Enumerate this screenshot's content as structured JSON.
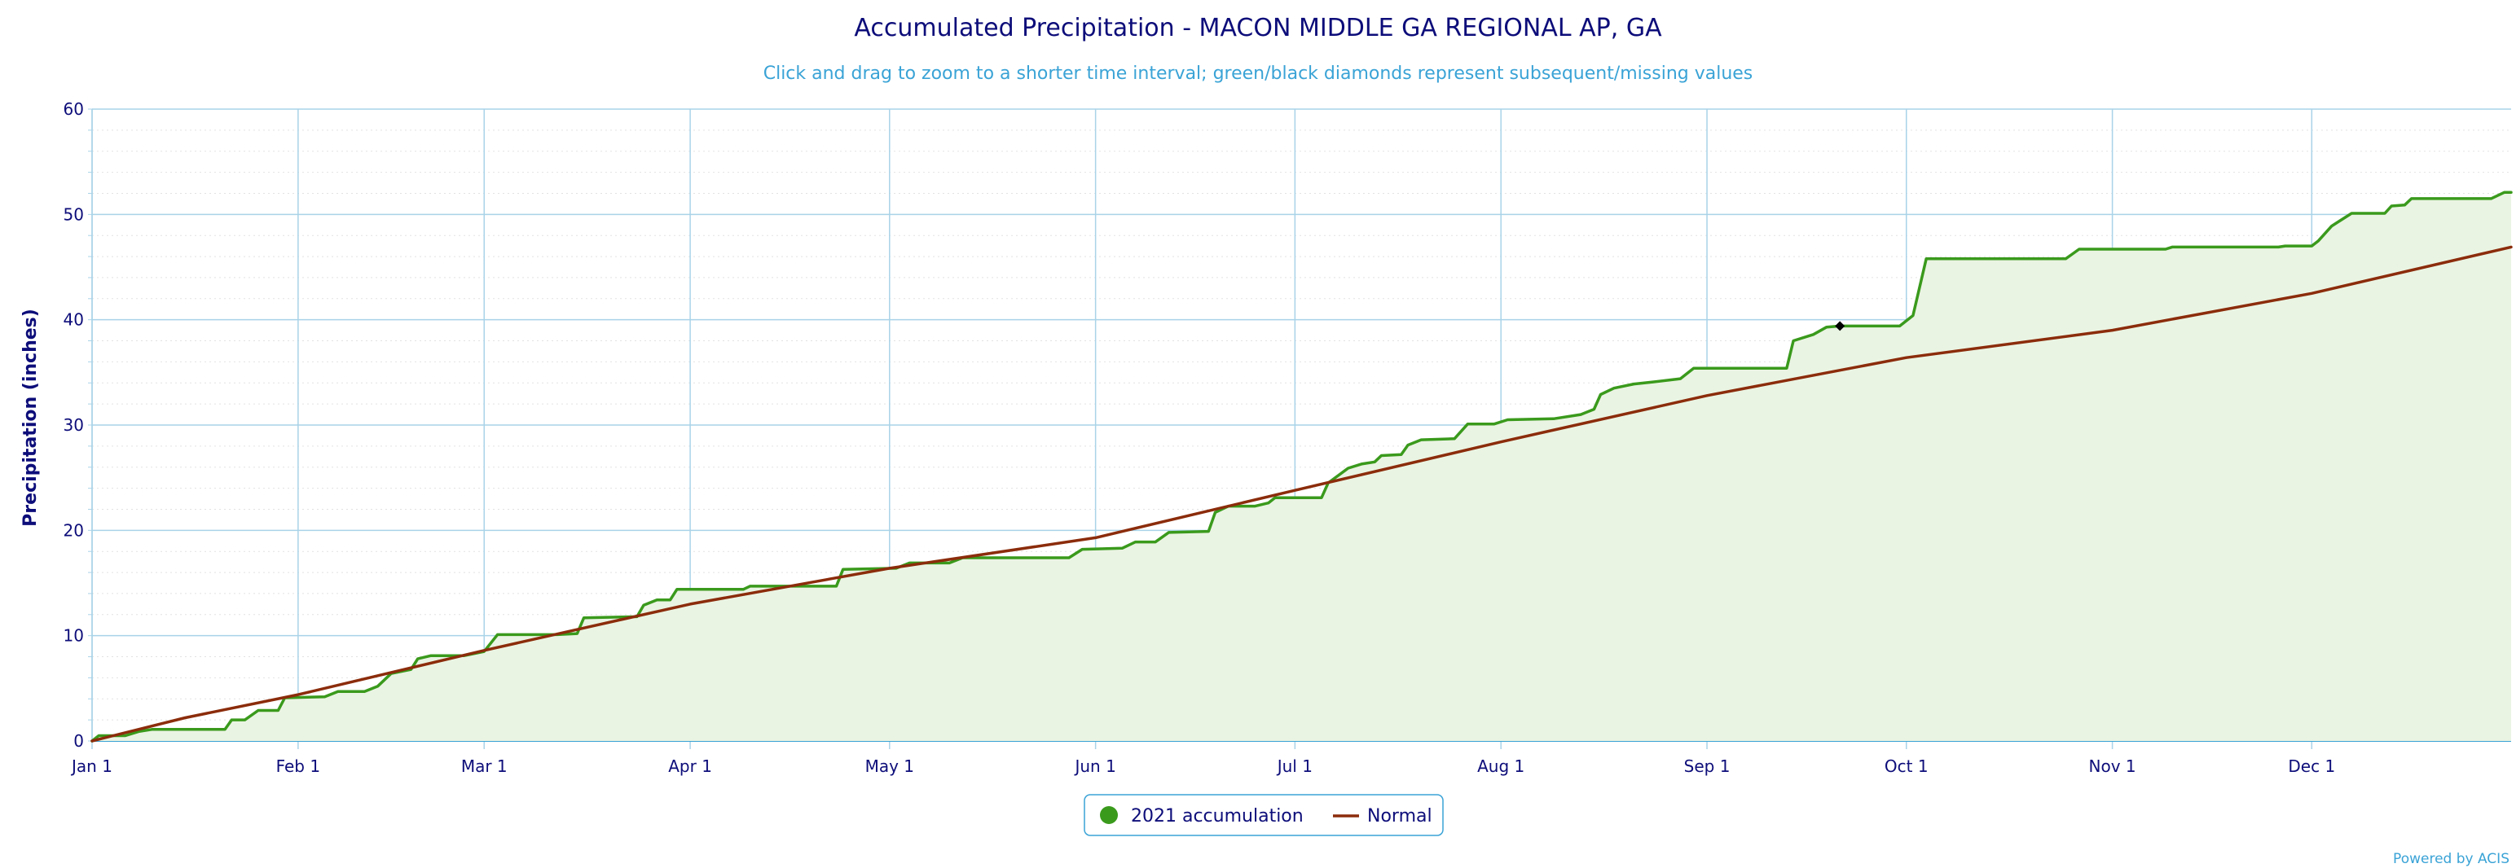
{
  "chart_data": {
    "type": "line",
    "title": "Accumulated Precipitation - MACON MIDDLE GA REGIONAL AP, GA",
    "subtitle": "Click and drag to zoom to a shorter time interval; green/black diamonds represent subsequent/missing values",
    "ylabel": "Precipitation (inches)",
    "ylim": [
      0,
      60
    ],
    "yticks": [
      0,
      10,
      20,
      30,
      40,
      50,
      60
    ],
    "xlim": [
      "2021-01-01",
      "2021-12-31"
    ],
    "xticks": [
      {
        "label": "Jan 1",
        "date": "2021-01-01"
      },
      {
        "label": "Feb 1",
        "date": "2021-02-01"
      },
      {
        "label": "Mar 1",
        "date": "2021-03-01"
      },
      {
        "label": "Apr 1",
        "date": "2021-04-01"
      },
      {
        "label": "May 1",
        "date": "2021-05-01"
      },
      {
        "label": "Jun 1",
        "date": "2021-06-01"
      },
      {
        "label": "Jul 1",
        "date": "2021-07-01"
      },
      {
        "label": "Aug 1",
        "date": "2021-08-01"
      },
      {
        "label": "Sep 1",
        "date": "2021-09-01"
      },
      {
        "label": "Oct 1",
        "date": "2021-10-01"
      },
      {
        "label": "Nov 1",
        "date": "2021-11-01"
      },
      {
        "label": "Dec 1",
        "date": "2021-12-01"
      }
    ],
    "grid": true,
    "legend_position": "bottom-center",
    "series": [
      {
        "name": "2021 accumulation",
        "color": "#3a9a1c",
        "fill": "#eaf4e3",
        "points": [
          [
            "2021-01-01",
            0.0
          ],
          [
            "2021-01-02",
            0.5
          ],
          [
            "2021-01-06",
            0.5
          ],
          [
            "2021-01-08",
            0.9
          ],
          [
            "2021-01-10",
            1.1
          ],
          [
            "2021-01-21",
            1.1
          ],
          [
            "2021-01-22",
            2.0
          ],
          [
            "2021-01-24",
            2.0
          ],
          [
            "2021-01-26",
            2.9
          ],
          [
            "2021-01-29",
            2.9
          ],
          [
            "2021-01-30",
            4.1
          ],
          [
            "2021-02-05",
            4.2
          ],
          [
            "2021-02-07",
            4.7
          ],
          [
            "2021-02-11",
            4.7
          ],
          [
            "2021-02-13",
            5.2
          ],
          [
            "2021-02-15",
            6.4
          ],
          [
            "2021-02-18",
            6.8
          ],
          [
            "2021-02-19",
            7.8
          ],
          [
            "2021-02-21",
            8.1
          ],
          [
            "2021-02-26",
            8.1
          ],
          [
            "2021-03-01",
            8.5
          ],
          [
            "2021-03-03",
            10.1
          ],
          [
            "2021-03-12",
            10.1
          ],
          [
            "2021-03-15",
            10.2
          ],
          [
            "2021-03-16",
            11.7
          ],
          [
            "2021-03-24",
            11.8
          ],
          [
            "2021-03-25",
            12.9
          ],
          [
            "2021-03-27",
            13.4
          ],
          [
            "2021-03-29",
            13.4
          ],
          [
            "2021-03-30",
            14.4
          ],
          [
            "2021-04-09",
            14.4
          ],
          [
            "2021-04-10",
            14.7
          ],
          [
            "2021-04-23",
            14.7
          ],
          [
            "2021-04-24",
            16.3
          ],
          [
            "2021-05-02",
            16.4
          ],
          [
            "2021-05-04",
            16.9
          ],
          [
            "2021-05-10",
            16.9
          ],
          [
            "2021-05-12",
            17.4
          ],
          [
            "2021-05-28",
            17.4
          ],
          [
            "2021-05-30",
            18.2
          ],
          [
            "2021-06-05",
            18.3
          ],
          [
            "2021-06-07",
            18.9
          ],
          [
            "2021-06-10",
            18.9
          ],
          [
            "2021-06-12",
            19.8
          ],
          [
            "2021-06-18",
            19.9
          ],
          [
            "2021-06-19",
            21.7
          ],
          [
            "2021-06-21",
            22.3
          ],
          [
            "2021-06-25",
            22.3
          ],
          [
            "2021-06-27",
            22.6
          ],
          [
            "2021-06-28",
            23.1
          ],
          [
            "2021-07-05",
            23.1
          ],
          [
            "2021-07-06",
            24.5
          ],
          [
            "2021-07-09",
            25.9
          ],
          [
            "2021-07-11",
            26.3
          ],
          [
            "2021-07-13",
            26.5
          ],
          [
            "2021-07-14",
            27.1
          ],
          [
            "2021-07-17",
            27.2
          ],
          [
            "2021-07-18",
            28.1
          ],
          [
            "2021-07-20",
            28.6
          ],
          [
            "2021-07-25",
            28.7
          ],
          [
            "2021-07-27",
            30.1
          ],
          [
            "2021-07-31",
            30.1
          ],
          [
            "2021-08-02",
            30.5
          ],
          [
            "2021-08-09",
            30.6
          ],
          [
            "2021-08-13",
            31.0
          ],
          [
            "2021-08-15",
            31.5
          ],
          [
            "2021-08-16",
            32.9
          ],
          [
            "2021-08-18",
            33.5
          ],
          [
            "2021-08-21",
            33.9
          ],
          [
            "2021-08-24",
            34.1
          ],
          [
            "2021-08-28",
            34.4
          ],
          [
            "2021-08-30",
            35.4
          ],
          [
            "2021-09-13",
            35.4
          ],
          [
            "2021-09-14",
            38.0
          ],
          [
            "2021-09-17",
            38.6
          ],
          [
            "2021-09-19",
            39.3
          ],
          [
            "2021-09-21",
            39.4
          ],
          [
            "2021-09-30",
            39.4
          ],
          [
            "2021-10-02",
            40.4
          ],
          [
            "2021-10-04",
            45.8
          ],
          [
            "2021-10-25",
            45.8
          ],
          [
            "2021-10-27",
            46.7
          ],
          [
            "2021-11-09",
            46.7
          ],
          [
            "2021-11-10",
            46.9
          ],
          [
            "2021-11-26",
            46.9
          ],
          [
            "2021-11-27",
            47.0
          ],
          [
            "2021-12-01",
            47.0
          ],
          [
            "2021-12-02",
            47.5
          ],
          [
            "2021-12-04",
            48.9
          ],
          [
            "2021-12-05",
            49.3
          ],
          [
            "2021-12-07",
            50.1
          ],
          [
            "2021-12-12",
            50.1
          ],
          [
            "2021-12-13",
            50.8
          ],
          [
            "2021-12-15",
            50.9
          ],
          [
            "2021-12-16",
            51.5
          ],
          [
            "2021-12-28",
            51.5
          ],
          [
            "2021-12-30",
            52.1
          ],
          [
            "2021-12-31",
            52.1
          ]
        ]
      },
      {
        "name": "Normal",
        "color": "#8b2c0b",
        "points": [
          [
            "2021-01-01",
            0.0
          ],
          [
            "2021-01-15",
            2.2
          ],
          [
            "2021-02-01",
            4.4
          ],
          [
            "2021-03-01",
            8.6
          ],
          [
            "2021-04-01",
            13.0
          ],
          [
            "2021-05-01",
            16.4
          ],
          [
            "2021-06-01",
            19.3
          ],
          [
            "2021-07-01",
            23.8
          ],
          [
            "2021-08-01",
            28.4
          ],
          [
            "2021-09-01",
            32.8
          ],
          [
            "2021-10-01",
            36.4
          ],
          [
            "2021-11-01",
            39.0
          ],
          [
            "2021-12-01",
            42.5
          ],
          [
            "2021-12-31",
            46.9
          ]
        ]
      }
    ],
    "markers": [
      {
        "type": "diamond",
        "color": "#000000",
        "date": "2021-09-21",
        "value": 39.4
      }
    ],
    "credit": "Powered by ACIS"
  }
}
